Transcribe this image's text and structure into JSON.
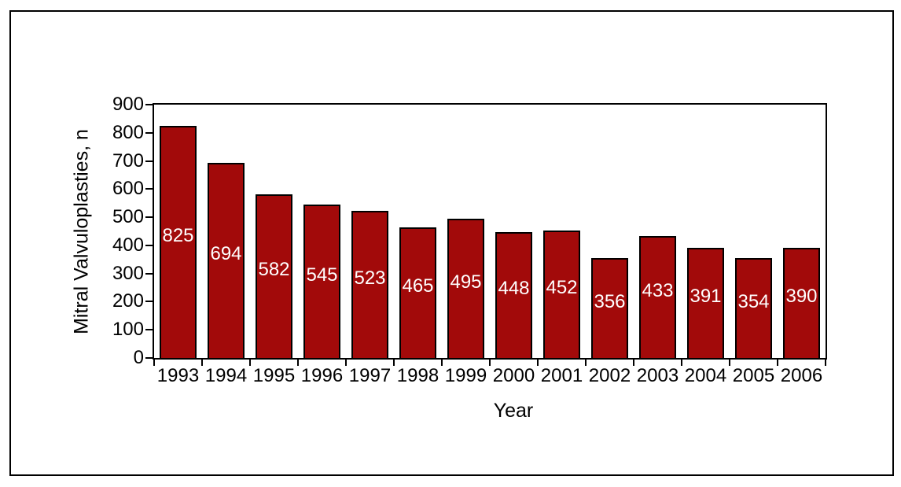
{
  "figure": {
    "background_color": "#FFFFFF",
    "border_color": "#000000"
  },
  "chart_data": {
    "type": "bar",
    "title": "",
    "xlabel": "Year",
    "ylabel": "Mitral Valvuloplasties, n",
    "categories": [
      "1993",
      "1994",
      "1995",
      "1996",
      "1997",
      "1998",
      "1999",
      "2000",
      "2001",
      "2002",
      "2003",
      "2004",
      "2005",
      "2006"
    ],
    "values": [
      825,
      694,
      582,
      545,
      523,
      465,
      495,
      448,
      452,
      356,
      433,
      391,
      354,
      390
    ],
    "value_labels": [
      "825",
      "694",
      "582",
      "545",
      "523",
      "465",
      "495",
      "448",
      "452",
      "356",
      "433",
      "391",
      "354",
      "390"
    ],
    "ylim": [
      0,
      900
    ],
    "yticks": [
      0,
      100,
      200,
      300,
      400,
      500,
      600,
      700,
      800,
      900
    ],
    "grid": false,
    "legend": "none",
    "bar_color": "#A20A0A",
    "bar_border_color": "#000000",
    "value_label_color": "#FFFFFF",
    "axis_text_color": "#000000"
  }
}
